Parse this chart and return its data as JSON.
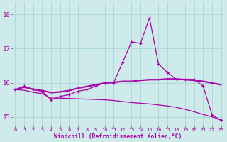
{
  "xlabel": "Windchill (Refroidissement éolien,°C)",
  "background_color": "#ceeaea",
  "line_color": "#aa00aa",
  "grid_color": "#aad8d8",
  "hours": [
    0,
    1,
    2,
    3,
    4,
    5,
    6,
    7,
    8,
    9,
    10,
    11,
    12,
    13,
    14,
    15,
    16,
    17,
    18,
    19,
    20,
    21,
    22,
    23
  ],
  "windchill": [
    15.8,
    15.9,
    15.8,
    15.75,
    15.5,
    15.6,
    15.65,
    15.75,
    15.8,
    15.9,
    16.0,
    16.0,
    16.6,
    17.2,
    17.15,
    17.9,
    16.55,
    16.3,
    16.1,
    16.1,
    16.1,
    15.9,
    15.05,
    14.9
  ],
  "flat1": [
    15.8,
    15.88,
    15.82,
    15.78,
    15.72,
    15.74,
    15.78,
    15.85,
    15.9,
    15.95,
    16.0,
    16.02,
    16.05,
    16.05,
    16.08,
    16.1,
    16.1,
    16.12,
    16.12,
    16.1,
    16.08,
    16.05,
    16.0,
    15.95
  ],
  "flat2": [
    15.8,
    15.86,
    15.8,
    15.76,
    15.7,
    15.72,
    15.76,
    15.83,
    15.88,
    15.93,
    15.98,
    16.0,
    16.03,
    16.03,
    16.06,
    16.08,
    16.08,
    16.1,
    16.1,
    16.08,
    16.06,
    16.03,
    15.98,
    15.93
  ],
  "declining": [
    15.8,
    15.78,
    15.72,
    15.68,
    15.55,
    15.55,
    15.54,
    15.53,
    15.52,
    15.51,
    15.5,
    15.48,
    15.45,
    15.42,
    15.4,
    15.38,
    15.35,
    15.32,
    15.28,
    15.22,
    15.15,
    15.07,
    15.0,
    14.9
  ],
  "ylim": [
    14.75,
    18.35
  ],
  "yticks": [
    15,
    16,
    17,
    18
  ],
  "xticks": [
    0,
    1,
    2,
    3,
    4,
    5,
    6,
    7,
    8,
    9,
    10,
    11,
    12,
    13,
    14,
    15,
    16,
    17,
    18,
    19,
    20,
    21,
    22,
    23
  ]
}
